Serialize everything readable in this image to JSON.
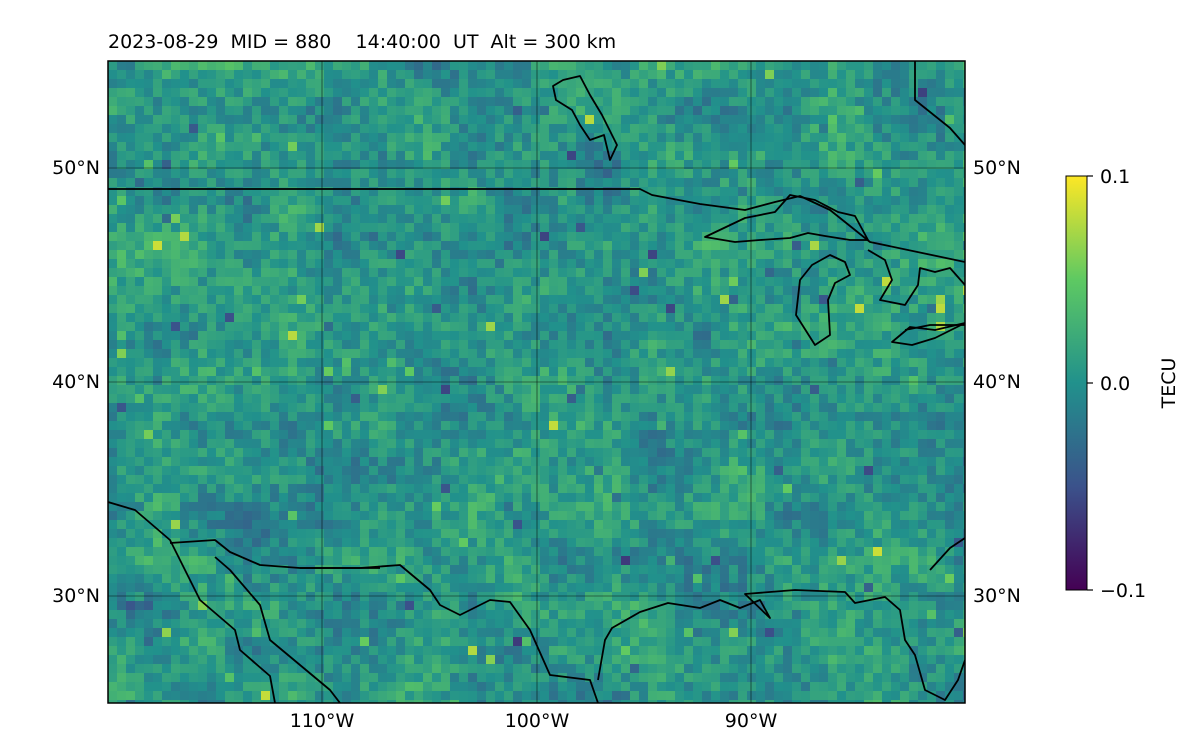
{
  "title": "2023-08-29  MID = 880    14:40:00  UT  Alt = 300 km",
  "map": {
    "lon_range": [
      -120,
      -80
    ],
    "lat_range": [
      25,
      55
    ],
    "lon_ticks": [
      {
        "value": -110,
        "label": "110°W"
      },
      {
        "value": -100,
        "label": "100°W"
      },
      {
        "value": -90,
        "label": "90°W"
      }
    ],
    "lat_ticks": [
      {
        "value": 50,
        "label": "50°N"
      },
      {
        "value": 40,
        "label": "40°N"
      },
      {
        "value": 30,
        "label": "30°N"
      }
    ],
    "grid": true,
    "field": "detrended total electron content (noise-like tile pattern)"
  },
  "colorbar": {
    "label": "TECU",
    "colormap": "viridis",
    "range": [
      -0.1,
      0.1
    ],
    "ticks": [
      {
        "value": 0.1,
        "label": "0.1"
      },
      {
        "value": 0.0,
        "label": "0.0"
      },
      {
        "value": -0.1,
        "label": "−0.1"
      }
    ],
    "stops": [
      "#440154",
      "#3b528b",
      "#21918c",
      "#5ec962",
      "#fde725"
    ]
  }
}
